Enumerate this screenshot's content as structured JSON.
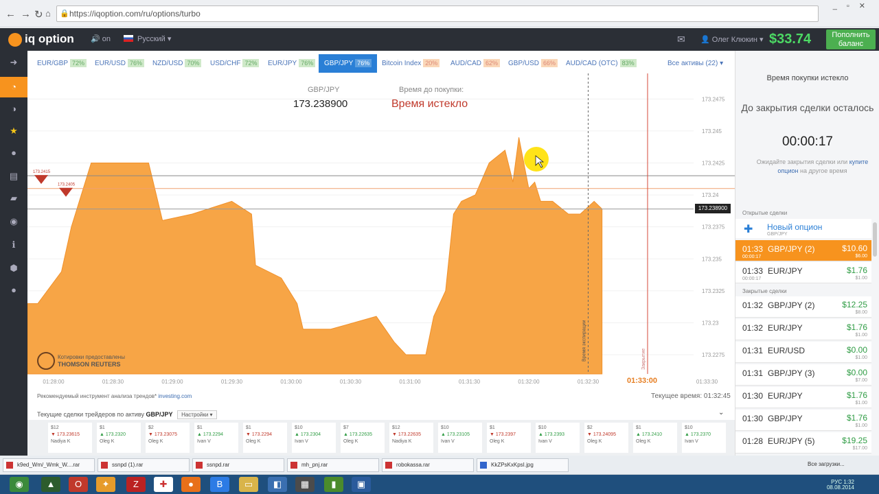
{
  "browser": {
    "url": "https://iqoption.com/ru/options/turbo"
  },
  "header": {
    "logo": "iq option",
    "sound": "on",
    "language": "Русский",
    "user": "Олег Клюкин",
    "balance": "$33.74",
    "deposit_button": "Пополнить баланс"
  },
  "tabs": [
    {
      "asset": "EUR/GBP",
      "pct": "72%"
    },
    {
      "asset": "EUR/USD",
      "pct": "76%"
    },
    {
      "asset": "NZD/USD",
      "pct": "70%"
    },
    {
      "asset": "USD/CHF",
      "pct": "72%"
    },
    {
      "asset": "EUR/JPY",
      "pct": "76%"
    },
    {
      "asset": "GBP/JPY",
      "pct": "76%"
    },
    {
      "asset": "Bitcoin Index",
      "pct": "20%"
    },
    {
      "asset": "AUD/CAD",
      "pct": "62%"
    },
    {
      "asset": "GBP/USD",
      "pct": "66%"
    },
    {
      "asset": "AUD/CAD (OTC)",
      "pct": "83%"
    }
  ],
  "all_assets": "Все активы (22)",
  "chart": {
    "asset_label": "GBP/JPY",
    "price": "173.238900",
    "time_label": "Время до покупки:",
    "time_value": "Время истекло",
    "current_price_tag": "173.238900",
    "provider_line1": "Котировки предоставлены",
    "provider_line2": "THOMSON REUTERS",
    "expire_time": "01:33:00",
    "recommend_text": "Рекомендуемый инструмент анализа трендов*",
    "recommend_link": "investing.com",
    "current_time": "Текущее время: 01:32:45",
    "expire_vertical": "Время экспирации",
    "close_vertical": "Закрытие"
  },
  "chart_data": {
    "type": "area",
    "y_ticks": [
      "173.2475",
      "173.245",
      "173.2425",
      "173.24",
      "173.2375",
      "173.235",
      "173.2325",
      "173.23",
      "173.2275"
    ],
    "x_ticks": [
      "01:28:00",
      "01:28:30",
      "01:29:00",
      "01:29:30",
      "01:30:00",
      "01:30:30",
      "01:31:00",
      "01:31:30",
      "01:32:00",
      "01:32:30",
      "01:33:00",
      "01:33:30"
    ],
    "ylim": [
      173.226,
      173.2495
    ],
    "series": [
      {
        "x": [
          "01:27:52",
          "01:28:04",
          "01:28:09",
          "01:28:19",
          "01:28:48",
          "01:28:55",
          "01:29:10",
          "01:29:30",
          "01:29:40",
          "01:29:42",
          "01:29:55",
          "01:30:03",
          "01:30:06",
          "01:30:20",
          "01:30:43",
          "01:30:52",
          "01:30:58",
          "01:31:00",
          "01:31:08",
          "01:31:12",
          "01:31:18",
          "01:31:22",
          "01:31:26",
          "01:31:33",
          "01:31:40",
          "01:31:48",
          "01:31:52",
          "01:31:55",
          "01:32:00",
          "01:32:03",
          "01:32:06",
          "01:32:12",
          "01:32:20",
          "01:32:26",
          "01:32:33",
          "01:32:37"
        ],
        "values": [
          173.2315,
          173.234,
          173.2375,
          173.2425,
          173.2425,
          173.238,
          173.2385,
          173.2395,
          173.2385,
          173.2345,
          173.2335,
          173.2315,
          173.2295,
          173.2295,
          173.2305,
          173.2285,
          173.2275,
          173.2275,
          173.2275,
          173.2305,
          173.2325,
          173.2385,
          173.2395,
          173.24,
          173.2425,
          173.2435,
          173.241,
          173.2445,
          173.2405,
          173.241,
          173.2395,
          173.2395,
          173.2385,
          173.2385,
          173.2395,
          173.2389
        ]
      }
    ],
    "markers": [
      {
        "label": "173.2415"
      },
      {
        "label": "173.2405"
      }
    ]
  },
  "panel": {
    "buy_expired": "Время покупки истекло",
    "close_left": "До закрытия сделки осталось",
    "timer": "00:00:17",
    "wait_note": "Ожидайте закрытия сделки или",
    "wait_link": "купите опцион",
    "wait_note2": "на другое время",
    "open_header": "Открытые сделки",
    "new_option": "Новый опцион",
    "new_option_sub": "GBP/JPY",
    "open_deals": [
      {
        "time": "01:33",
        "asset": "GBP/JPY (2)",
        "amount": "$10.60",
        "sub": "00:00:17",
        "stake": "$6.00"
      },
      {
        "time": "01:33",
        "asset": "EUR/JPY",
        "amount": "$1.76",
        "sub": "00:00:17",
        "stake": "$1.00"
      }
    ],
    "closed_header": "Закрытые сделки",
    "closed_deals": [
      {
        "time": "01:32",
        "asset": "GBP/JPY (2)",
        "amount": "$12.25",
        "stake": "$8.00"
      },
      {
        "time": "01:32",
        "asset": "EUR/JPY",
        "amount": "$1.76",
        "stake": "$1.00"
      },
      {
        "time": "01:31",
        "asset": "EUR/USD",
        "amount": "$0.00",
        "stake": "$1.00"
      },
      {
        "time": "01:31",
        "asset": "GBP/JPY (3)",
        "amount": "$0.00",
        "stake": "$7.00"
      },
      {
        "time": "01:30",
        "asset": "EUR/JPY",
        "amount": "$1.76",
        "stake": "$1.00"
      },
      {
        "time": "01:30",
        "asset": "GBP/JPY",
        "amount": "$1.76",
        "stake": "$1.00"
      },
      {
        "time": "01:28",
        "asset": "EUR/JPY (5)",
        "amount": "$19.25",
        "stake": "$17.00"
      }
    ]
  },
  "traders": {
    "header": "Текущие сделки трейдеров по активу",
    "asset": "GBP/JPY",
    "settings": "Настройки",
    "cards": [
      {
        "amt": "$12",
        "price": "173.23615",
        "name": "Nadiya K",
        "dir": "dn"
      },
      {
        "amt": "$1",
        "price": "173.2320",
        "name": "Oleg K",
        "dir": "up"
      },
      {
        "amt": "$2",
        "price": "173.23075",
        "name": "Oleg K",
        "dir": "dn"
      },
      {
        "amt": "$1",
        "price": "173.2294",
        "name": "Ivan V",
        "dir": "up"
      },
      {
        "amt": "$1",
        "price": "173.2294",
        "name": "Oleg K",
        "dir": "dn"
      },
      {
        "amt": "$10",
        "price": "173.2304",
        "name": "Ivan V",
        "dir": "up"
      },
      {
        "amt": "$7",
        "price": "173.22635",
        "name": "Oleg K",
        "dir": "up"
      },
      {
        "amt": "$12",
        "price": "173.22635",
        "name": "Nadiya K",
        "dir": "dn"
      },
      {
        "amt": "$10",
        "price": "173.23105",
        "name": "Ivan V",
        "dir": "up"
      },
      {
        "amt": "$1",
        "price": "173.2397",
        "name": "Oleg K",
        "dir": "dn"
      },
      {
        "amt": "$10",
        "price": "173.2393",
        "name": "Ivan V",
        "dir": "up"
      },
      {
        "amt": "$2",
        "price": "173.24095",
        "name": "Oleg K",
        "dir": "dn"
      },
      {
        "amt": "$1",
        "price": "173.2410",
        "name": "Oleg K",
        "dir": "up"
      },
      {
        "amt": "$10",
        "price": "173.2370",
        "name": "Ivan V",
        "dir": "up"
      }
    ]
  },
  "downloads": [
    {
      "name": "k9ed_Wm/_Wmk_W....rar"
    },
    {
      "name": "ssnpd (1).rar"
    },
    {
      "name": "ssnpd.rar"
    },
    {
      "name": "mh_pnj.rar"
    },
    {
      "name": "robokassa.rar"
    },
    {
      "name": "KkZPsKxKpsI.jpg"
    }
  ],
  "downloads_all": "Все загрузки...",
  "tray": {
    "lang": "РУС",
    "time": "1:32",
    "date": "08.08.2014"
  },
  "colors": {
    "accent": "#f7931e",
    "tab_active": "#2a7fd6",
    "balance": "#4cd964",
    "deposit": "#4caf50"
  }
}
